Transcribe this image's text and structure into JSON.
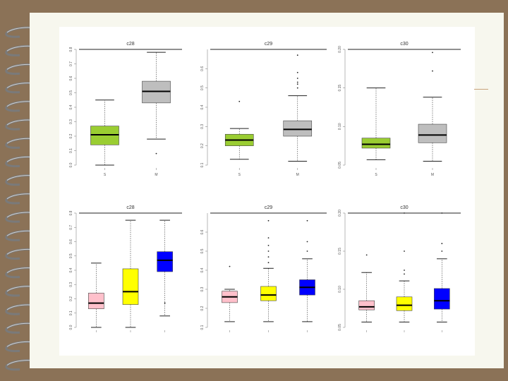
{
  "colors": {
    "background": "#8b7257",
    "page": "#f7f7ee",
    "green": "#9acd32",
    "gray": "#bebebe",
    "pink": "#ffc0cb",
    "yellow": "#ffff00",
    "blue": "#0000ff"
  },
  "chart_data": [
    {
      "type": "box",
      "title": "c28",
      "categories": [
        "S",
        "M"
      ],
      "ylim": [
        0.0,
        0.8
      ],
      "yticks": [
        "0.0",
        "0.1",
        "0.2",
        "0.3",
        "0.4",
        "0.5",
        "0.6",
        "0.7",
        "0.8"
      ],
      "boxes": [
        {
          "name": "S",
          "fill": "#9acd32",
          "min": 0.0,
          "q1": 0.14,
          "median": 0.21,
          "q3": 0.27,
          "max": 0.45,
          "outliers": []
        },
        {
          "name": "M",
          "fill": "#bebebe",
          "min": 0.18,
          "q1": 0.43,
          "median": 0.51,
          "q3": 0.58,
          "max": 0.78,
          "outliers": [
            0.08
          ]
        }
      ]
    },
    {
      "type": "box",
      "title": "c29",
      "categories": [
        "S",
        "M"
      ],
      "ylim": [
        0.1,
        0.7
      ],
      "yticks": [
        "0.1",
        "0.2",
        "0.3",
        "0.4",
        "0.5",
        "0.6"
      ],
      "boxes": [
        {
          "name": "S",
          "fill": "#9acd32",
          "min": 0.13,
          "q1": 0.2,
          "median": 0.23,
          "q3": 0.26,
          "max": 0.29,
          "outliers": [
            0.43
          ]
        },
        {
          "name": "M",
          "fill": "#bebebe",
          "min": 0.12,
          "q1": 0.25,
          "median": 0.285,
          "q3": 0.33,
          "max": 0.46,
          "outliers": [
            0.5,
            0.52,
            0.53,
            0.55,
            0.58,
            0.67
          ]
        }
      ]
    },
    {
      "type": "box",
      "title": "c30",
      "categories": [
        "S",
        "M"
      ],
      "ylim": [
        0.05,
        0.2
      ],
      "yticks": [
        "0.05",
        "0.10",
        "0.15",
        "0.20"
      ],
      "boxes": [
        {
          "name": "S",
          "fill": "#9acd32",
          "min": 0.057,
          "q1": 0.072,
          "median": 0.077,
          "q3": 0.085,
          "max": 0.15,
          "outliers": []
        },
        {
          "name": "M",
          "fill": "#bebebe",
          "min": 0.055,
          "q1": 0.079,
          "median": 0.089,
          "q3": 0.103,
          "max": 0.138,
          "outliers": [
            0.172,
            0.196
          ]
        }
      ]
    },
    {
      "type": "box",
      "title": "c28",
      "categories": [
        "",
        "",
        ""
      ],
      "ylim": [
        0.0,
        0.8
      ],
      "yticks": [
        "0.0",
        "0.1",
        "0.2",
        "0.3",
        "0.4",
        "0.5",
        "0.6",
        "0.7",
        "0.8"
      ],
      "boxes": [
        {
          "name": "1",
          "fill": "#ffc0cb",
          "min": 0.0,
          "q1": 0.13,
          "median": 0.17,
          "q3": 0.24,
          "max": 0.45,
          "outliers": []
        },
        {
          "name": "2",
          "fill": "#ffff00",
          "min": 0.0,
          "q1": 0.16,
          "median": 0.25,
          "q3": 0.41,
          "max": 0.75,
          "outliers": []
        },
        {
          "name": "3",
          "fill": "#0000ff",
          "min": 0.08,
          "q1": 0.39,
          "median": 0.47,
          "q3": 0.53,
          "max": 0.75,
          "outliers": [
            0.17
          ]
        }
      ]
    },
    {
      "type": "box",
      "title": "c29",
      "categories": [
        "",
        "",
        ""
      ],
      "ylim": [
        0.1,
        0.7
      ],
      "yticks": [
        "0.1",
        "0.2",
        "0.3",
        "0.4",
        "0.5",
        "0.6"
      ],
      "boxes": [
        {
          "name": "1",
          "fill": "#ffc0cb",
          "min": 0.13,
          "q1": 0.23,
          "median": 0.26,
          "q3": 0.29,
          "max": 0.3,
          "outliers": [
            0.42
          ]
        },
        {
          "name": "2",
          "fill": "#ffff00",
          "min": 0.13,
          "q1": 0.24,
          "median": 0.27,
          "q3": 0.315,
          "max": 0.41,
          "outliers": [
            0.44,
            0.47,
            0.5,
            0.53,
            0.57,
            0.66
          ]
        },
        {
          "name": "3",
          "fill": "#0000ff",
          "min": 0.13,
          "q1": 0.27,
          "median": 0.31,
          "q3": 0.35,
          "max": 0.46,
          "outliers": [
            0.5,
            0.55,
            0.66
          ]
        }
      ]
    },
    {
      "type": "box",
      "title": "c30",
      "categories": [
        "",
        "",
        ""
      ],
      "ylim": [
        0.05,
        0.2
      ],
      "yticks": [
        "0.05",
        "0.10",
        "0.15",
        "0.20"
      ],
      "boxes": [
        {
          "name": "1",
          "fill": "#ffc0cb",
          "min": 0.057,
          "q1": 0.073,
          "median": 0.077,
          "q3": 0.085,
          "max": 0.122,
          "outliers": [
            0.145
          ]
        },
        {
          "name": "2",
          "fill": "#ffff00",
          "min": 0.057,
          "q1": 0.072,
          "median": 0.079,
          "q3": 0.09,
          "max": 0.111,
          "outliers": [
            0.12,
            0.125,
            0.15,
            0.2
          ]
        },
        {
          "name": "3",
          "fill": "#0000ff",
          "min": 0.057,
          "q1": 0.074,
          "median": 0.085,
          "q3": 0.101,
          "max": 0.14,
          "outliers": [
            0.15,
            0.16,
            0.2
          ]
        }
      ]
    }
  ]
}
